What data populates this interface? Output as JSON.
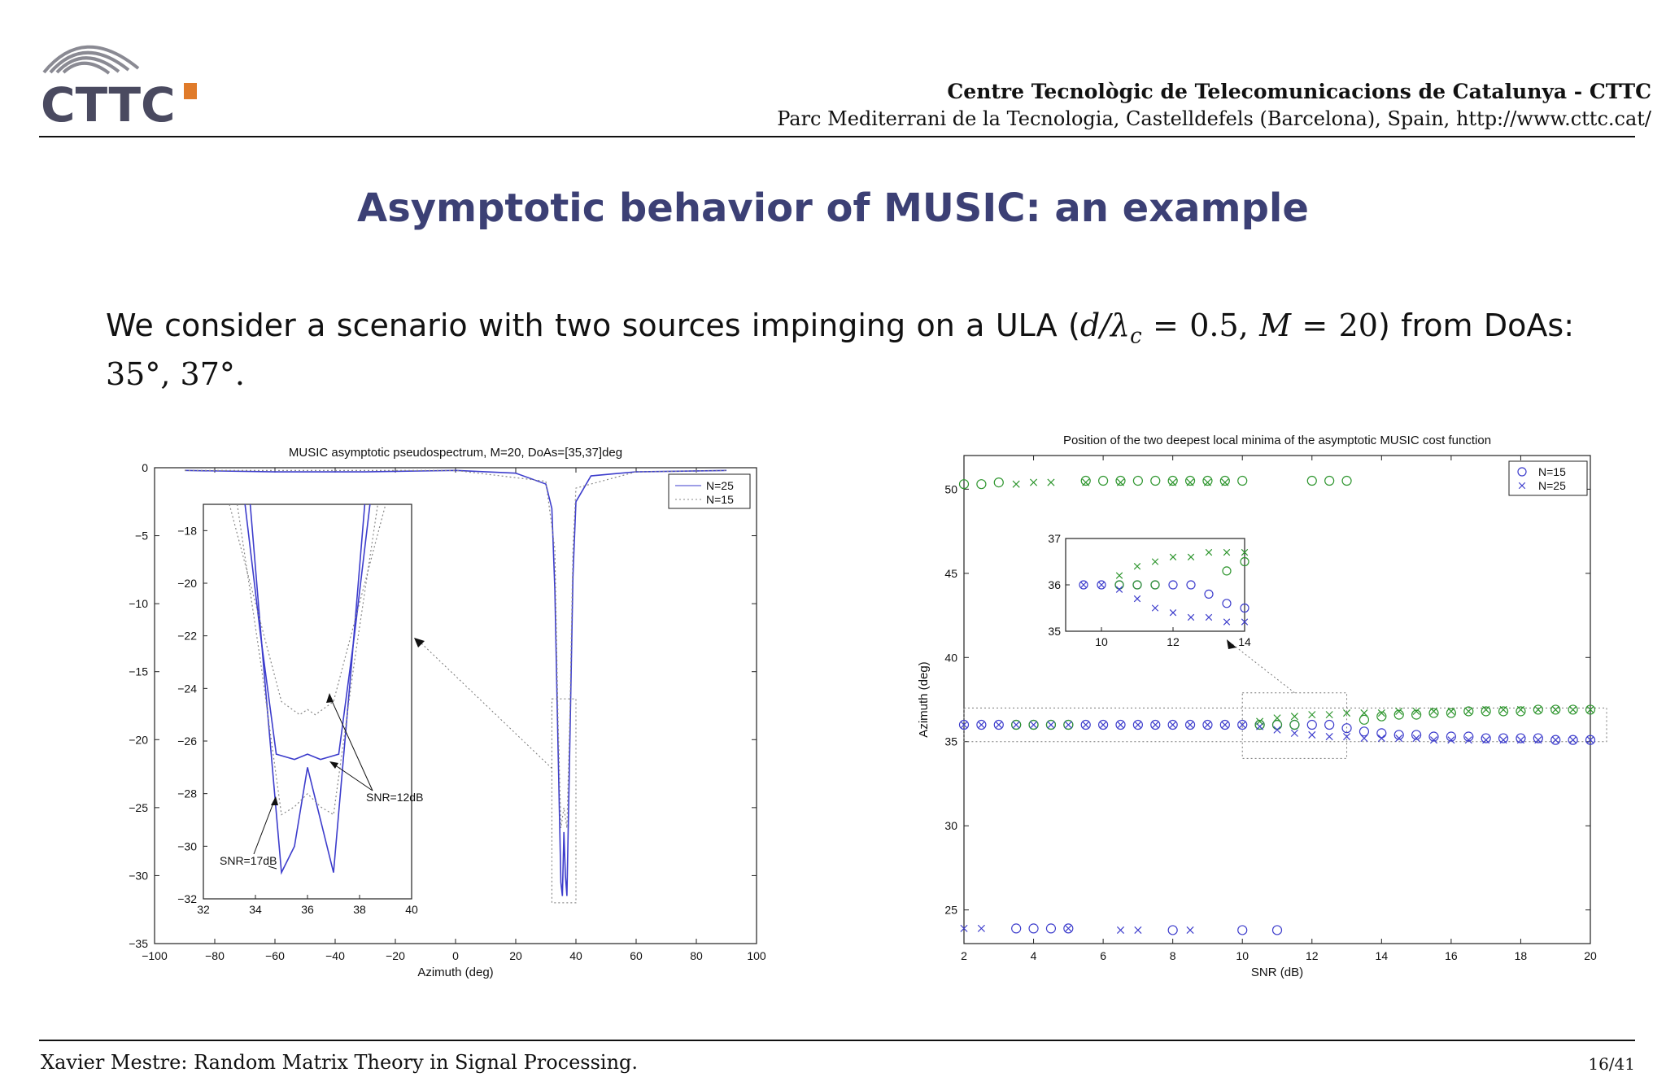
{
  "header": {
    "logo_text": "CTTC",
    "institution": "Centre Tecnològic de Telecomunicacions de Catalunya - CTTC",
    "address": "Parc Mediterrani de la Tecnologia, Castelldefels (Barcelona), Spain, http://www.cttc.cat/"
  },
  "slide": {
    "title": "Asymptotic behavior of MUSIC: an example",
    "body_line1_a": "We consider a scenario with two sources impinging on a ULA (",
    "body_math": "d/λ",
    "body_math_sub": "c",
    "body_math_b": " = 0.5, ",
    "body_math_M": "M",
    "body_math_c": " = 20",
    "body_line1_b": ") from DoAs:",
    "body_line2": "35°, 37°."
  },
  "colors": {
    "accent": "#3c4075",
    "blue": "#3d3dcc",
    "green": "#2f962f",
    "dotted": "#777777"
  },
  "chart_data": [
    {
      "type": "line",
      "title": "MUSIC asymptotic pseudospectrum, M=20, DoAs=[35,37]deg",
      "xlabel": "Azimuth (deg)",
      "ylabel": "",
      "xlim": [
        -100,
        100
      ],
      "ylim": [
        -35,
        0
      ],
      "xticks": [
        "−100",
        "−80",
        "−60",
        "−40",
        "−20",
        "0",
        "20",
        "40",
        "60",
        "80",
        "100"
      ],
      "yticks": [
        "0",
        "−5",
        "−10",
        "−15",
        "−20",
        "−25",
        "−30",
        "−35"
      ],
      "legend": [
        {
          "name": "N=25",
          "style": "solid"
        },
        {
          "name": "N=15",
          "style": "dotted"
        }
      ],
      "legend_position": "top-right",
      "series": [
        {
          "name": "N=25",
          "x": [
            -90,
            -60,
            -30,
            0,
            20,
            30,
            32,
            33,
            34,
            35,
            35.5,
            36,
            36.5,
            37,
            38,
            39,
            40,
            45,
            60,
            90
          ],
          "y": [
            -0.2,
            -0.3,
            -0.3,
            -0.2,
            -0.4,
            -1.2,
            -3,
            -9,
            -20,
            -30.5,
            -31.5,
            -26.8,
            -30,
            -31.5,
            -20,
            -8,
            -2.5,
            -0.6,
            -0.3,
            -0.2
          ]
        },
        {
          "name": "N=15",
          "x": [
            -90,
            0,
            30,
            33,
            34,
            35,
            36,
            37,
            38,
            39,
            40,
            60,
            90
          ],
          "y": [
            -0.2,
            -0.2,
            -1,
            -6,
            -18,
            -26.5,
            -25,
            -26.5,
            -18,
            -6,
            -1.5,
            -0.3,
            -0.2
          ]
        }
      ],
      "inset": {
        "xlim": [
          32,
          40
        ],
        "ylim": [
          -32,
          -17
        ],
        "xticks": [
          "32",
          "34",
          "36",
          "38",
          "40"
        ],
        "yticks": [
          "−18",
          "−20",
          "−22",
          "−24",
          "−26",
          "−28",
          "−30",
          "−32"
        ],
        "series": [
          {
            "name": "N=25 SNR=17dB",
            "x": [
              33.8,
              34.3,
              35,
              35.5,
              36,
              36.5,
              37,
              37.7,
              38.2
            ],
            "y": [
              -17,
              -23,
              -31,
              -30,
              -27,
              -29,
              -31,
              -23,
              -17
            ]
          },
          {
            "name": "N=25 SNR=12dB",
            "x": [
              33.6,
              34.2,
              34.8,
              35.5,
              36,
              36.5,
              37.2,
              37.8,
              38.4
            ],
            "y": [
              -17,
              -22,
              -26.5,
              -26.7,
              -26.5,
              -26.7,
              -26.5,
              -22,
              -17
            ]
          },
          {
            "name": "N=15 SNR=17dB",
            "x": [
              33.3,
              34.2,
              35,
              35.5,
              36,
              36.5,
              37,
              37.8,
              38.7
            ],
            "y": [
              -17,
              -23,
              -28.8,
              -28.5,
              -28,
              -28.5,
              -28.8,
              -23,
              -17
            ]
          },
          {
            "name": "N=15 SNR=12dB",
            "x": [
              33.0,
              33.8,
              35,
              35.7,
              36,
              36.3,
              37,
              38.2,
              39
            ],
            "y": [
              -17,
              -20,
              -24.5,
              -25,
              -24.8,
              -25,
              -24.5,
              -20,
              -17
            ]
          }
        ],
        "annotations": [
          "SNR=12dB",
          "SNR=17dB"
        ]
      }
    },
    {
      "type": "scatter",
      "title": "Position of the two deepest local minima of the asymptotic MUSIC cost function",
      "xlabel": "SNR (dB)",
      "ylabel": "Azimuth (deg)",
      "xlim": [
        2,
        20
      ],
      "ylim": [
        23,
        52
      ],
      "xticks": [
        "2",
        "4",
        "6",
        "8",
        "10",
        "12",
        "14",
        "16",
        "18",
        "20"
      ],
      "yticks": [
        "25",
        "30",
        "35",
        "40",
        "45",
        "50"
      ],
      "legend": [
        {
          "name": "N=15",
          "marker": "circle"
        },
        {
          "name": "N=25",
          "marker": "x"
        }
      ],
      "legend_position": "top-right",
      "series": [
        {
          "name": "N=15 lower",
          "marker": "circle",
          "color": "blue",
          "x": [
            2,
            2.5,
            3,
            3.5,
            4,
            4.5,
            5,
            5.5,
            6,
            6.5,
            7,
            7.5,
            8,
            8.5,
            9,
            9.5,
            10,
            10.5,
            11,
            11.5,
            12,
            12.5,
            13,
            13.5,
            14,
            14.5,
            15,
            15.5,
            16,
            16.5,
            17,
            17.5,
            18,
            18.5,
            19,
            19.5,
            20
          ],
          "y": [
            36,
            36,
            36,
            36,
            36,
            36,
            36,
            36,
            36,
            36,
            36,
            36,
            36,
            36,
            36,
            36,
            36,
            36,
            36,
            36,
            36,
            36,
            35.8,
            35.6,
            35.5,
            35.4,
            35.4,
            35.3,
            35.3,
            35.3,
            35.2,
            35.2,
            35.2,
            35.2,
            35.1,
            35.1,
            35.1
          ]
        },
        {
          "name": "N=15 upper",
          "marker": "circle",
          "color": "green",
          "x": [
            2,
            2.5,
            3,
            3.5,
            4,
            4.5,
            5,
            5.5,
            6,
            6.5,
            7,
            7.5,
            8,
            8.5,
            9,
            9.5,
            10,
            10.5,
            11,
            11.5,
            12,
            12.5,
            13,
            13.5,
            14,
            14.5,
            15,
            15.5,
            16,
            16.5,
            17,
            17.5,
            18,
            18.5,
            19,
            19.5,
            20
          ],
          "y": [
            50.3,
            50.3,
            50.4,
            36,
            36,
            36,
            36,
            50.5,
            50.5,
            50.5,
            50.5,
            50.5,
            50.5,
            50.5,
            50.5,
            50.5,
            50.5,
            36,
            36,
            36,
            50.5,
            50.5,
            50.5,
            36.3,
            36.5,
            36.6,
            36.6,
            36.7,
            36.7,
            36.8,
            36.8,
            36.8,
            36.8,
            36.9,
            36.9,
            36.9,
            36.9
          ]
        },
        {
          "name": "N=15 spurious",
          "marker": "circle",
          "color": "blue",
          "x": [
            3.5,
            4,
            4.5,
            5,
            8,
            10,
            11
          ],
          "y": [
            23.9,
            23.9,
            23.9,
            23.9,
            23.8,
            23.8,
            23.8
          ]
        },
        {
          "name": "N=25 lower",
          "marker": "x",
          "color": "blue",
          "x": [
            2,
            2.5,
            3,
            3.5,
            4,
            4.5,
            5,
            5.5,
            6,
            6.5,
            7,
            7.5,
            8,
            8.5,
            9,
            9.5,
            10,
            10.5,
            11,
            11.5,
            12,
            12.5,
            13,
            13.5,
            14,
            14.5,
            15,
            15.5,
            16,
            16.5,
            17,
            17.5,
            18,
            18.5,
            19,
            19.5,
            20
          ],
          "y": [
            36,
            36,
            36,
            36,
            36,
            36,
            36,
            36,
            36,
            36,
            36,
            36,
            36,
            36,
            36,
            36,
            36,
            35.9,
            35.7,
            35.5,
            35.4,
            35.3,
            35.3,
            35.2,
            35.2,
            35.2,
            35.2,
            35.1,
            35.1,
            35.1,
            35.1,
            35.1,
            35.1,
            35.1,
            35.1,
            35.1,
            35.1
          ]
        },
        {
          "name": "N=25 upper",
          "marker": "x",
          "color": "green",
          "x": [
            3.5,
            4,
            4.5,
            5.5,
            6.5,
            8,
            8.5,
            9,
            9.5,
            10.5,
            11,
            11.5,
            12,
            12.5,
            13,
            13.5,
            14,
            14.5,
            15,
            15.5,
            16,
            16.5,
            17,
            17.5,
            18,
            18.5,
            19,
            19.5,
            20
          ],
          "y": [
            50.3,
            50.4,
            50.4,
            50.4,
            50.4,
            50.4,
            50.4,
            50.4,
            50.4,
            36.2,
            36.4,
            36.5,
            36.6,
            36.6,
            36.7,
            36.7,
            36.7,
            36.8,
            36.8,
            36.8,
            36.8,
            36.8,
            36.9,
            36.9,
            36.9,
            36.9,
            36.9,
            36.9,
            36.9
          ]
        },
        {
          "name": "N=25 spurious",
          "marker": "x",
          "color": "blue",
          "x": [
            2,
            2.5,
            5,
            6.5,
            7,
            8.5
          ],
          "y": [
            23.9,
            23.9,
            23.9,
            23.8,
            23.8,
            23.8
          ]
        }
      ],
      "inset": {
        "xlim": [
          9,
          14
        ],
        "ylim": [
          35,
          37
        ],
        "xticks": [
          "10",
          "12",
          "14"
        ],
        "yticks": [
          "35",
          "36",
          "37"
        ]
      }
    }
  ],
  "footer": {
    "left": "Xavier Mestre: Random Matrix Theory in Signal Processing.",
    "right": "16/41"
  }
}
